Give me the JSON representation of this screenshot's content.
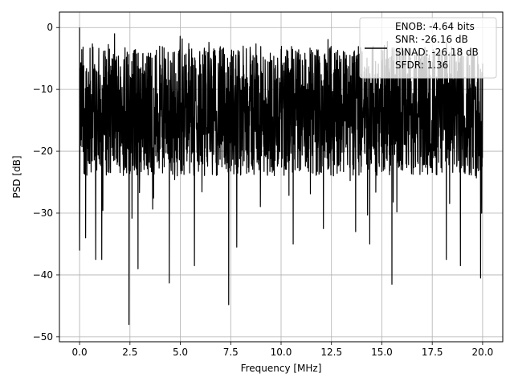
{
  "chart_data": {
    "type": "line",
    "title": "",
    "xlabel": "Frequency [MHz]",
    "ylabel": "PSD [dB]",
    "xlim": [
      -1.0,
      21.0
    ],
    "ylim": [
      -50.8,
      2.5
    ],
    "xticks": [
      0.0,
      2.5,
      5.0,
      7.5,
      10.0,
      12.5,
      15.0,
      17.5,
      20.0
    ],
    "xtick_labels": [
      "0.0",
      "2.5",
      "5.0",
      "7.5",
      "10.0",
      "12.5",
      "15.0",
      "17.5",
      "20.0"
    ],
    "yticks": [
      0,
      -10,
      -20,
      -30,
      -40,
      -50
    ],
    "ytick_labels": [
      "0",
      "−10",
      "−20",
      "−30",
      "−40",
      "−50"
    ],
    "grid": true,
    "legend_position": "upper-right",
    "legend": {
      "line1": "ENOB: -4.64 bits",
      "line2": "SNR: -26.16 dB",
      "line3": "SINAD: -26.18 dB",
      "line4": "SFDR: 1.36"
    },
    "series": [
      {
        "color": "#000000",
        "style": "noisy PSD spectrum (approximate)",
        "x_range": [
          0.0,
          20.0
        ],
        "peak": {
          "x": 0.0,
          "y": 0.0
        },
        "band_upper_approx": -3,
        "band_lower_approx": -24,
        "notable_dips": [
          {
            "x": 0.0,
            "y": -36.0
          },
          {
            "x": 0.3,
            "y": -34.0
          },
          {
            "x": 0.8,
            "y": -37.5
          },
          {
            "x": 1.1,
            "y": -37.5
          },
          {
            "x": 2.45,
            "y": -48.0
          },
          {
            "x": 2.9,
            "y": -39.0
          },
          {
            "x": 4.45,
            "y": -41.3
          },
          {
            "x": 5.7,
            "y": -38.5
          },
          {
            "x": 7.4,
            "y": -44.8
          },
          {
            "x": 7.8,
            "y": -35.5
          },
          {
            "x": 10.6,
            "y": -35.0
          },
          {
            "x": 12.1,
            "y": -32.5
          },
          {
            "x": 13.7,
            "y": -33.0
          },
          {
            "x": 14.4,
            "y": -35.0
          },
          {
            "x": 15.5,
            "y": -41.5
          },
          {
            "x": 18.2,
            "y": -37.5
          },
          {
            "x": 18.9,
            "y": -38.5
          },
          {
            "x": 19.9,
            "y": -40.5
          }
        ]
      }
    ]
  }
}
